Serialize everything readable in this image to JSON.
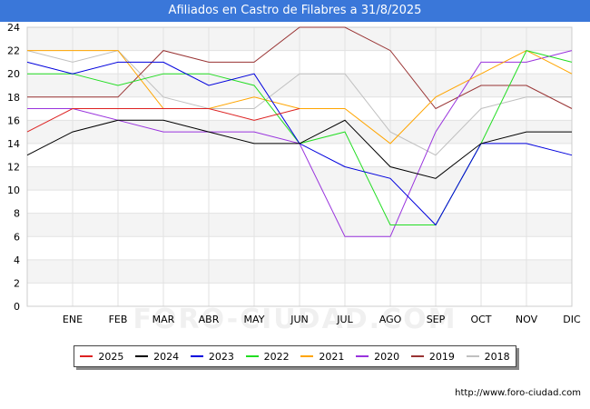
{
  "title": "Afiliados en Castro de Filabres a 31/8/2025",
  "footer_url": "http://www.foro-ciudad.com",
  "watermark": "FORO-CIUDAD.COM",
  "chart_data": {
    "type": "line",
    "title": "Afiliados en Castro de Filabres a 31/8/2025",
    "categories": [
      "",
      "ENE",
      "FEB",
      "MAR",
      "ABR",
      "MAY",
      "JUN",
      "JUL",
      "AGO",
      "SEP",
      "OCT",
      "NOV",
      "DIC"
    ],
    "ylim": [
      0,
      24
    ],
    "yticks": [
      0,
      2,
      4,
      6,
      8,
      10,
      12,
      14,
      16,
      18,
      20,
      22,
      24
    ],
    "grid": true,
    "legend_position": "bottom",
    "series": [
      {
        "name": "2025",
        "color": "#dd2222",
        "values": [
          15,
          17,
          17,
          17,
          17,
          16,
          17,
          null,
          null,
          null,
          null,
          null,
          null
        ]
      },
      {
        "name": "2024",
        "color": "#000000",
        "values": [
          13,
          15,
          16,
          16,
          15,
          14,
          14,
          16,
          12,
          11,
          14,
          15,
          15
        ]
      },
      {
        "name": "2023",
        "color": "#0000dd",
        "values": [
          21,
          20,
          21,
          21,
          19,
          20,
          14,
          12,
          11,
          7,
          14,
          14,
          13
        ]
      },
      {
        "name": "2022",
        "color": "#22dd22",
        "values": [
          20,
          20,
          19,
          20,
          20,
          19,
          14,
          15,
          7,
          7,
          14,
          22,
          21
        ]
      },
      {
        "name": "2021",
        "color": "#ffa500",
        "values": [
          22,
          22,
          22,
          17,
          17,
          18,
          17,
          17,
          14,
          18,
          20,
          22,
          20
        ]
      },
      {
        "name": "2020",
        "color": "#9933dd",
        "values": [
          17,
          17,
          16,
          15,
          15,
          15,
          14,
          6,
          6,
          15,
          21,
          21,
          22
        ]
      },
      {
        "name": "2019",
        "color": "#993333",
        "values": [
          18,
          18,
          18,
          22,
          21,
          21,
          24,
          24,
          22,
          17,
          19,
          19,
          17
        ]
      },
      {
        "name": "2018",
        "color": "#c0c0c0",
        "values": [
          22,
          21,
          22,
          18,
          17,
          17,
          20,
          20,
          15,
          13,
          17,
          18,
          18
        ]
      }
    ]
  }
}
